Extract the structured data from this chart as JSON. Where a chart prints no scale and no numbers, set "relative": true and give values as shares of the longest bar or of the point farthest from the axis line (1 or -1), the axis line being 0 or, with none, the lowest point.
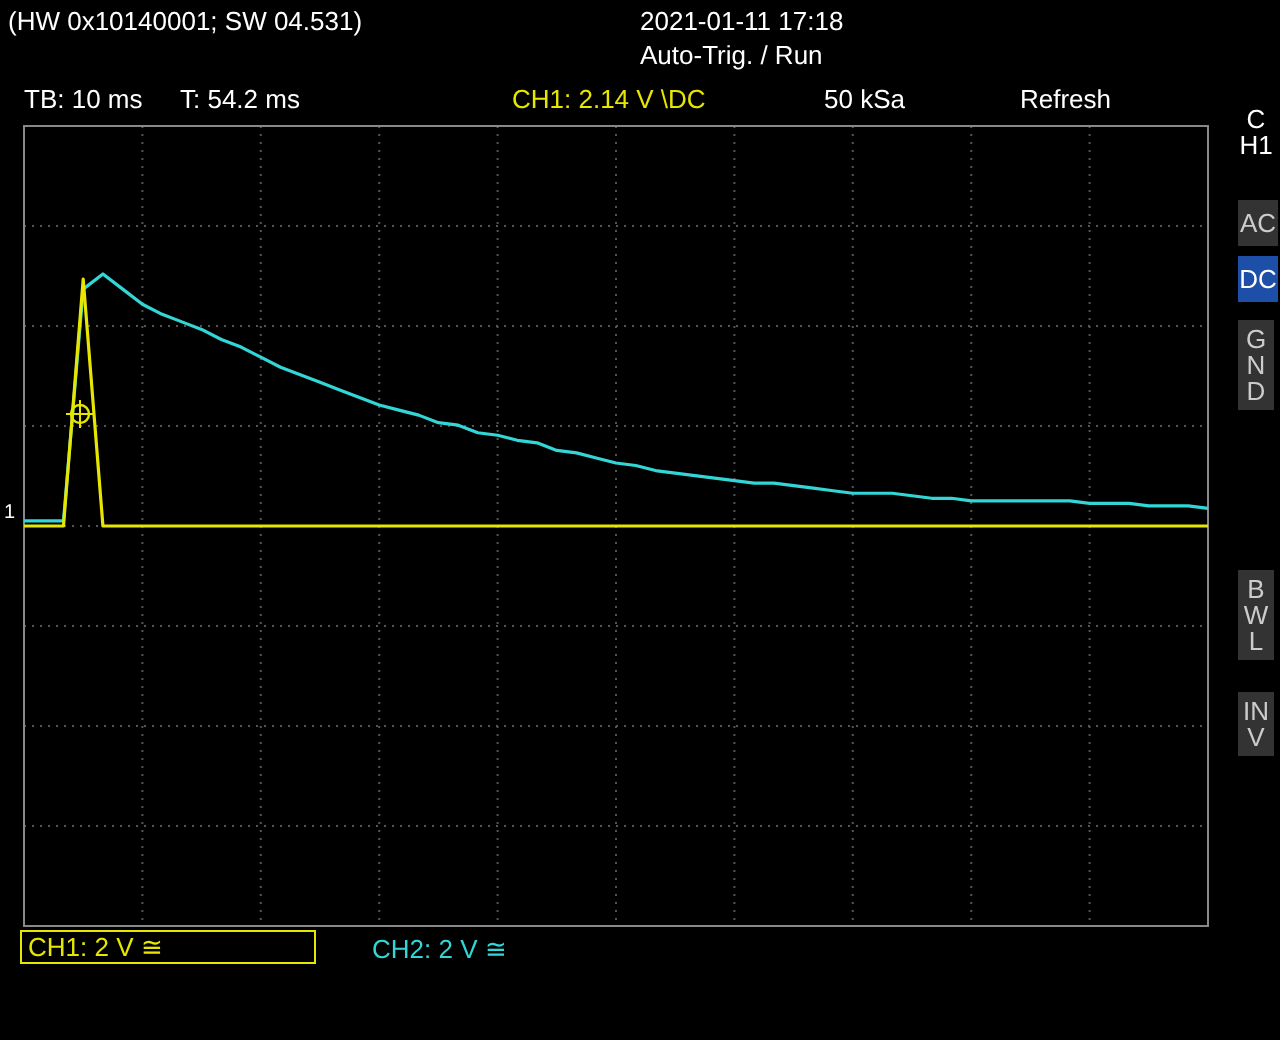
{
  "chart_data": {
    "type": "line",
    "relative": true,
    "grid": true,
    "legend": false,
    "marker": "none",
    "line_style": "solid",
    "categories": [
      null,
      null,
      null,
      null,
      null,
      null,
      null,
      null,
      null,
      null,
      null,
      null,
      null,
      null,
      null,
      null,
      null,
      null,
      null,
      null,
      null,
      null,
      null,
      null,
      null,
      null,
      null,
      null,
      null,
      null,
      null,
      null,
      null,
      null,
      null,
      null,
      null,
      null,
      null,
      null,
      null,
      null,
      null,
      null,
      null,
      null,
      null,
      null,
      null,
      null,
      null,
      null,
      null,
      null,
      null,
      null,
      null,
      null,
      null,
      null,
      null
    ],
    "series": [
      {
        "color": "#e6e600",
        "values": [
          0,
          0,
          0,
          0.98,
          0,
          0,
          0,
          0,
          0,
          0,
          0,
          0,
          0,
          0,
          0,
          0,
          0,
          0,
          0,
          0,
          0,
          0,
          0,
          0,
          0,
          0,
          0,
          0,
          0,
          0,
          0,
          0,
          0,
          0,
          0,
          0,
          0,
          0,
          0,
          0,
          0,
          0,
          0,
          0,
          0,
          0,
          0,
          0,
          0,
          0,
          0,
          0,
          0,
          0,
          0,
          0,
          0,
          0,
          0,
          0,
          0
        ]
      },
      {
        "color": "#33d6d6",
        "values": [
          0.02,
          0.02,
          0.02,
          0.94,
          1,
          0.94,
          0.88,
          0.84,
          0.81,
          0.78,
          0.74,
          0.71,
          0.67,
          0.63,
          0.6,
          0.57,
          0.54,
          0.51,
          0.48,
          0.46,
          0.44,
          0.41,
          0.4,
          0.37,
          0.36,
          0.34,
          0.33,
          0.3,
          0.29,
          0.27,
          0.25,
          0.24,
          0.22,
          0.21,
          0.2,
          0.19,
          0.18,
          0.17,
          0.17,
          0.16,
          0.15,
          0.14,
          0.13,
          0.13,
          0.13,
          0.12,
          0.11,
          0.11,
          0.1,
          0.1,
          0.1,
          0.1,
          0.1,
          0.1,
          0.09,
          0.09,
          0.09,
          0.08,
          0.08,
          0.08,
          0.07
        ]
      }
    ],
    "annotations": [
      "(HW 0x10140001; SW 04.531)",
      "2021-01-11 17:18",
      "Auto-Trig. / Run",
      "TB: 10 ms",
      "T: 54.2 ms",
      "CH1: 2.14 V \\DC",
      "50 kSa",
      "Refresh",
      "CH1: 2 V ≅",
      "CH2: 2 V ≅",
      "CH1",
      "AC",
      "DC",
      "GND",
      "BWL",
      "INV",
      "1"
    ]
  }
}
